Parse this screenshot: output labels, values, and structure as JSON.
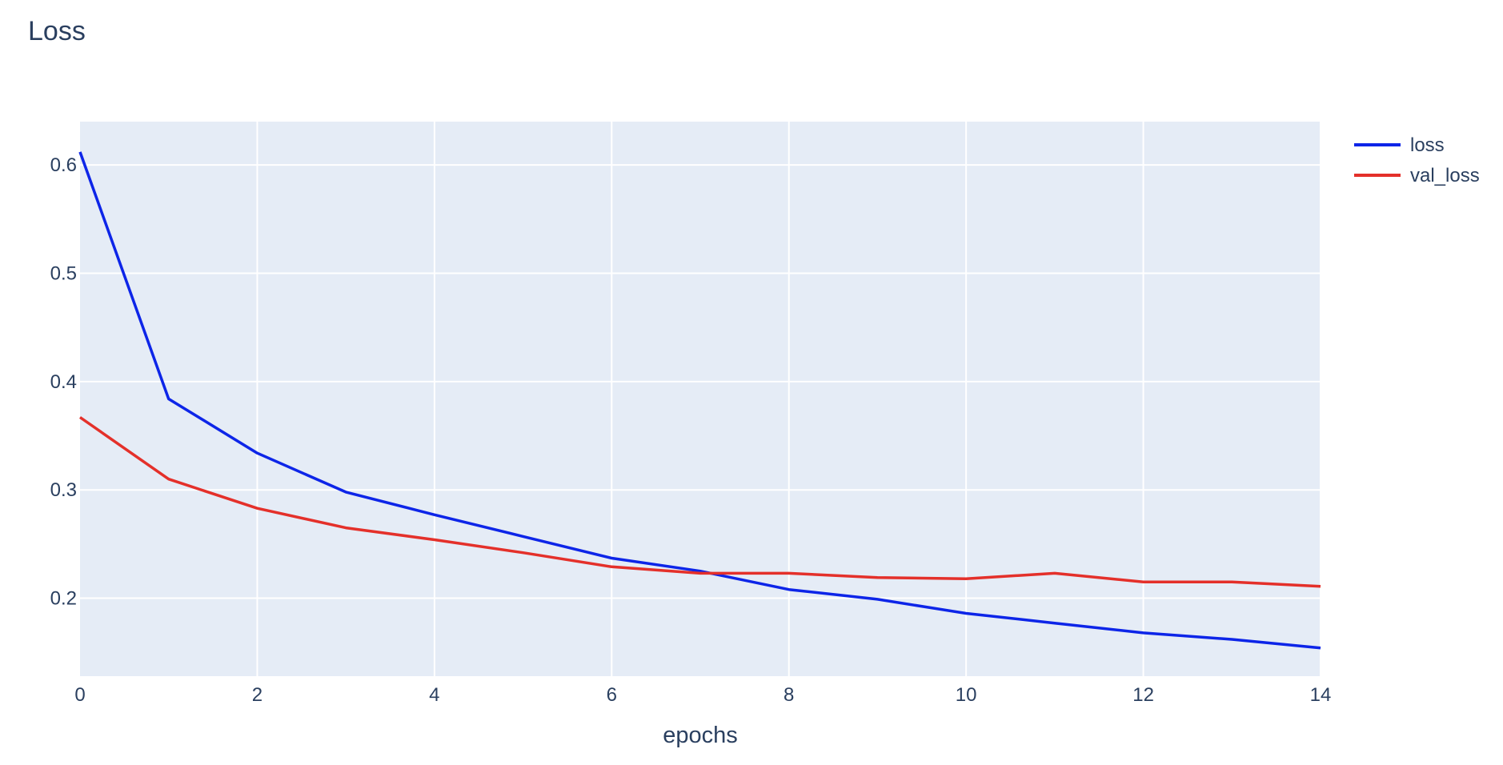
{
  "chart_data": {
    "type": "line",
    "title": "Loss",
    "xlabel": "epochs",
    "ylabel": "",
    "x": [
      0,
      1,
      2,
      3,
      4,
      5,
      6,
      7,
      8,
      9,
      10,
      11,
      12,
      13,
      14
    ],
    "xlim": [
      0,
      14
    ],
    "ylim": [
      0.128,
      0.64
    ],
    "xticks": [
      0,
      2,
      4,
      6,
      8,
      10,
      12,
      14
    ],
    "yticks": [
      0.2,
      0.3,
      0.4,
      0.5,
      0.6
    ],
    "ytick_labels": [
      "0.2",
      "0.3",
      "0.4",
      "0.5",
      "0.6"
    ],
    "grid": true,
    "legend_position": "top-right",
    "plot_background": "#e5ecf6",
    "series": [
      {
        "name": "loss",
        "color": "#0d25e8",
        "values": [
          0.612,
          0.384,
          0.334,
          0.298,
          0.277,
          0.257,
          0.237,
          0.225,
          0.208,
          0.199,
          0.186,
          0.177,
          0.168,
          0.162,
          0.154
        ]
      },
      {
        "name": "val_loss",
        "color": "#e4302a",
        "values": [
          0.367,
          0.31,
          0.283,
          0.265,
          0.254,
          0.242,
          0.229,
          0.223,
          0.223,
          0.219,
          0.218,
          0.223,
          0.215,
          0.215,
          0.211
        ]
      }
    ]
  }
}
